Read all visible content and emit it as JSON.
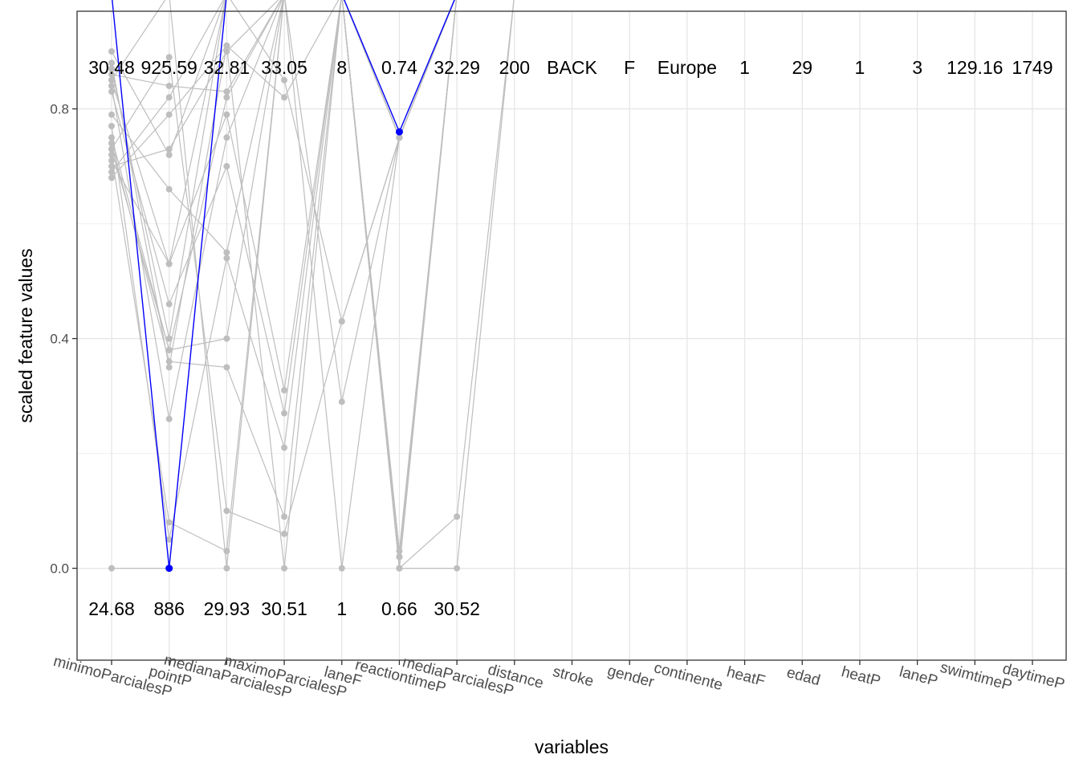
{
  "chart_data": {
    "type": "line",
    "xlabel": "variables",
    "ylabel": "scaled feature values",
    "ylim": [
      -0.16,
      0.97
    ],
    "y_ticks": [
      0.0,
      0.4,
      0.8
    ],
    "y_tick_labels": [
      "0.0",
      "0.4",
      "0.8"
    ],
    "grid": true,
    "categories": [
      "minimoParcialesP",
      "pointP",
      "medianaParcialesP",
      "maximoParcialesP",
      "laneF",
      "reactiontimeP",
      "mediaParcialesP",
      "distance",
      "stroke",
      "gender",
      "continente",
      "heatF",
      "edad",
      "heatP",
      "laneP",
      "swimtimeP",
      "daytimeP"
    ],
    "top_labels": [
      "30.48",
      "925.59",
      "32.81",
      "33.05",
      "8",
      "0.74",
      "32.29",
      "200",
      "BACK",
      "F",
      "Europe",
      "1",
      "29",
      "1",
      "3",
      "129.16",
      "1749"
    ],
    "bottom_labels": [
      "24.68",
      "886",
      "29.93",
      "30.51",
      "1",
      "0.66",
      "30.52",
      "",
      "",
      "",
      "",
      "",
      "",
      "",
      "",
      "",
      ""
    ],
    "highlight_color": "#0000ff",
    "background_color": "#bebebe",
    "highlighted_series": {
      "values": [
        1.0,
        0.0,
        1.0,
        1.0,
        1.0,
        0.76,
        1.0,
        1.0,
        1.0,
        1.0,
        1.0,
        1.0,
        1.0,
        1.0,
        1.0,
        1.0,
        1.0
      ]
    },
    "background_series": [
      [
        0.9,
        0.72,
        1.0,
        1.0,
        1.0,
        0.75,
        1.0,
        1.0
      ],
      [
        0.88,
        0.35,
        0.91,
        0.82,
        1.0,
        0.02,
        1.0,
        1.0
      ],
      [
        0.87,
        0.4,
        1.0,
        0.85,
        0.43,
        0.75,
        1.0,
        1.0
      ],
      [
        0.86,
        0.84,
        0.83,
        1.0,
        1.0,
        0.0,
        0.09,
        1.0
      ],
      [
        0.85,
        0.53,
        0.79,
        0.31,
        1.0,
        0.0,
        1.0,
        1.0
      ],
      [
        0.84,
        0.26,
        0.75,
        1.0,
        0.29,
        0.75,
        1.0,
        1.0
      ],
      [
        0.83,
        0.46,
        0.7,
        0.27,
        1.0,
        0.03,
        1.0,
        1.0
      ],
      [
        0.79,
        0.66,
        0.55,
        1.0,
        1.0,
        0.0,
        0.0,
        1.0
      ],
      [
        0.77,
        0.05,
        0.54,
        0.21,
        1.0,
        0.75,
        1.0,
        1.0
      ],
      [
        0.75,
        0.38,
        0.4,
        1.0,
        1.0,
        0.02,
        1.0,
        1.0
      ],
      [
        0.74,
        0.36,
        0.35,
        0.09,
        1.0,
        0.75,
        1.0,
        1.0
      ],
      [
        0.73,
        0.89,
        0.1,
        0.06,
        0.43,
        0.75,
        1.0,
        1.0
      ],
      [
        0.72,
        0.08,
        0.03,
        1.0,
        0.0,
        0.75,
        1.0,
        1.0
      ],
      [
        0.71,
        0.53,
        1.0,
        1.0,
        1.0,
        1.0,
        1.0,
        1.0
      ],
      [
        0.7,
        0.73,
        0.9,
        1.0,
        1.0,
        0.0,
        1.0,
        1.0
      ],
      [
        0.68,
        0.79,
        0.91,
        0.0,
        1.0,
        0.75,
        1.0,
        1.0
      ],
      [
        0.69,
        0.82,
        1.0,
        1.0,
        1.0,
        0.75,
        1.0,
        1.0
      ],
      [
        0.85,
        1.0,
        0.0,
        1.0,
        1.0,
        0.02,
        1.0,
        1.0
      ],
      [
        0.0,
        0.0,
        1.0,
        1.0,
        1.0,
        0.75,
        1.0,
        1.0
      ],
      [
        0.73,
        0.38,
        0.82,
        1.0,
        1.0,
        0.75,
        1.0,
        1.0
      ]
    ]
  }
}
